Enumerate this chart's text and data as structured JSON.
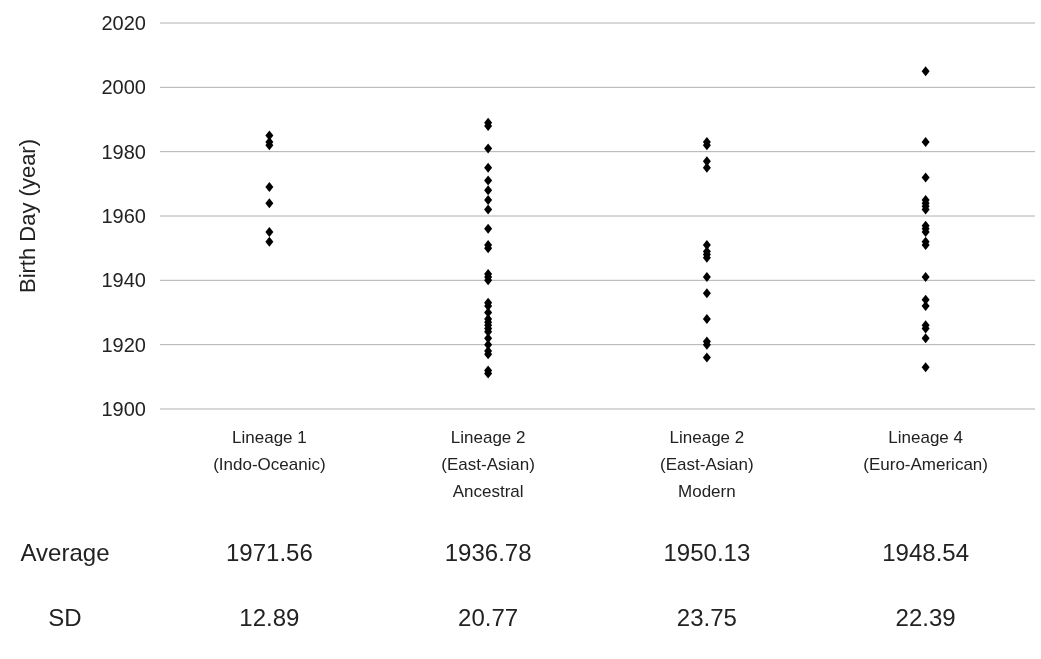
{
  "chart_data": {
    "type": "scatter",
    "ylabel": "Birth Day (year)",
    "categories": [
      "Lineage 1\n(Indo-Oceanic)",
      "Lineage 2\n(East-Asian)\nAncestral",
      "Lineage 2\n(East-Asian)\nModern",
      "Lineage 4\n(Euro-American)"
    ],
    "ylim": [
      1900,
      2020
    ],
    "yticks": [
      1900,
      1920,
      1940,
      1960,
      1980,
      2000,
      2020
    ],
    "grid": "y",
    "marker": "diamond",
    "series": [
      {
        "color": "#000000",
        "x": [
          "Lineage 1\n(Indo-Oceanic)",
          "Lineage 1\n(Indo-Oceanic)",
          "Lineage 1\n(Indo-Oceanic)",
          "Lineage 1\n(Indo-Oceanic)",
          "Lineage 1\n(Indo-Oceanic)",
          "Lineage 1\n(Indo-Oceanic)",
          "Lineage 1\n(Indo-Oceanic)",
          "Lineage 2\n(East-Asian)\nAncestral",
          "Lineage 2\n(East-Asian)\nAncestral",
          "Lineage 2\n(East-Asian)\nAncestral",
          "Lineage 2\n(East-Asian)\nAncestral",
          "Lineage 2\n(East-Asian)\nAncestral",
          "Lineage 2\n(East-Asian)\nAncestral",
          "Lineage 2\n(East-Asian)\nAncestral",
          "Lineage 2\n(East-Asian)\nAncestral",
          "Lineage 2\n(East-Asian)\nAncestral",
          "Lineage 2\n(East-Asian)\nAncestral",
          "Lineage 2\n(East-Asian)\nAncestral",
          "Lineage 2\n(East-Asian)\nAncestral",
          "Lineage 2\n(East-Asian)\nAncestral",
          "Lineage 2\n(East-Asian)\nAncestral",
          "Lineage 2\n(East-Asian)\nAncestral",
          "Lineage 2\n(East-Asian)\nAncestral",
          "Lineage 2\n(East-Asian)\nAncestral",
          "Lineage 2\n(East-Asian)\nAncestral",
          "Lineage 2\n(East-Asian)\nAncestral",
          "Lineage 2\n(East-Asian)\nAncestral",
          "Lineage 2\n(East-Asian)\nAncestral",
          "Lineage 2\n(East-Asian)\nAncestral",
          "Lineage 2\n(East-Asian)\nAncestral",
          "Lineage 2\n(East-Asian)\nAncestral",
          "Lineage 2\n(East-Asian)\nAncestral",
          "Lineage 2\n(East-Asian)\nAncestral",
          "Lineage 2\n(East-Asian)\nAncestral",
          "Lineage 2\n(East-Asian)\nAncestral",
          "Lineage 2\n(East-Asian)\nModern",
          "Lineage 2\n(East-Asian)\nModern",
          "Lineage 2\n(East-Asian)\nModern",
          "Lineage 2\n(East-Asian)\nModern",
          "Lineage 2\n(East-Asian)\nModern",
          "Lineage 2\n(East-Asian)\nModern",
          "Lineage 2\n(East-Asian)\nModern",
          "Lineage 2\n(East-Asian)\nModern",
          "Lineage 2\n(East-Asian)\nModern",
          "Lineage 2\n(East-Asian)\nModern",
          "Lineage 2\n(East-Asian)\nModern",
          "Lineage 2\n(East-Asian)\nModern",
          "Lineage 2\n(East-Asian)\nModern",
          "Lineage 2\n(East-Asian)\nModern",
          "Lineage 4\n(Euro-American)",
          "Lineage 4\n(Euro-American)",
          "Lineage 4\n(Euro-American)",
          "Lineage 4\n(Euro-American)",
          "Lineage 4\n(Euro-American)",
          "Lineage 4\n(Euro-American)",
          "Lineage 4\n(Euro-American)",
          "Lineage 4\n(Euro-American)",
          "Lineage 4\n(Euro-American)",
          "Lineage 4\n(Euro-American)",
          "Lineage 4\n(Euro-American)",
          "Lineage 4\n(Euro-American)",
          "Lineage 4\n(Euro-American)",
          "Lineage 4\n(Euro-American)",
          "Lineage 4\n(Euro-American)",
          "Lineage 4\n(Euro-American)",
          "Lineage 4\n(Euro-American)",
          "Lineage 4\n(Euro-American)",
          "Lineage 4\n(Euro-American)"
        ],
        "values": [
          1985,
          1983,
          1982,
          1969,
          1964,
          1955,
          1952,
          1989,
          1988,
          1981,
          1975,
          1971,
          1968,
          1965,
          1962,
          1956,
          1951,
          1950,
          1942,
          1941,
          1940,
          1933,
          1932,
          1930,
          1928,
          1927,
          1926,
          1925,
          1924,
          1922,
          1920,
          1918,
          1917,
          1912,
          1911,
          1983,
          1982,
          1977,
          1975,
          1951,
          1949,
          1948,
          1947,
          1941,
          1936,
          1928,
          1921,
          1920,
          1916,
          2005,
          1983,
          1972,
          1965,
          1964,
          1963,
          1962,
          1957,
          1956,
          1955,
          1952,
          1951,
          1941,
          1934,
          1932,
          1926,
          1925,
          1922,
          1913
        ]
      }
    ],
    "annotations": [
      "Average",
      "1971.56",
      "1936.78",
      "1950.13",
      "1948.54",
      "SD",
      "12.89",
      "20.77",
      "23.75",
      "22.39"
    ]
  }
}
